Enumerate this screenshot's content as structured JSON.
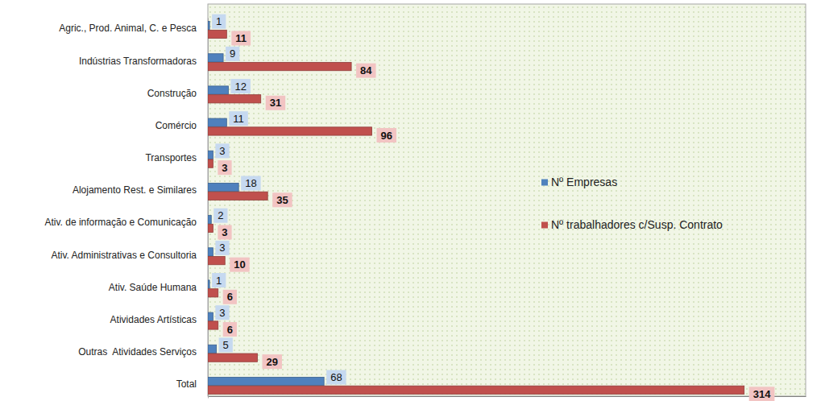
{
  "chart_data": {
    "type": "bar",
    "orientation": "horizontal",
    "categories": [
      "Agric., Prod. Animal, C. e Pesca",
      "Indústrias Transformadoras",
      "Construção",
      "Comércio",
      "Transportes",
      "Alojamento Rest. e Similares",
      "Ativ. de informação e Comunicação",
      "Ativ. Administrativas e Consultoria",
      "Ativ. Saúde Humana",
      "Atividades Artísticas",
      "Outras  Atividades Serviços",
      "Total"
    ],
    "series": [
      {
        "name": "Nº Empresas",
        "color": "#4f81bd",
        "values": [
          1,
          9,
          12,
          11,
          3,
          18,
          2,
          3,
          1,
          3,
          5,
          68
        ]
      },
      {
        "name": "Nº trabalhadores c/Susp. Contrato",
        "color": "#c0504d",
        "values": [
          11,
          84,
          31,
          96,
          3,
          35,
          3,
          10,
          6,
          6,
          29,
          314
        ]
      }
    ],
    "xlim": [
      0,
      350
    ],
    "xticks": [],
    "data_labels": true,
    "legend": "right",
    "tick_labels": "y",
    "grid": false
  }
}
